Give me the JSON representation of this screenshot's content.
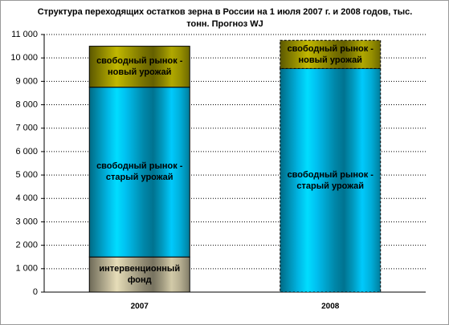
{
  "chart_data": {
    "type": "stacked_bar",
    "title": "Структура переходящих остатков зерна в России на 1 июля 2007 г. и 2008 годов, тыс. тонн. Прогноз WJ",
    "categories": [
      "2007",
      "2008"
    ],
    "series": [
      {
        "name": "интервенционный фонд",
        "color": "#c8c0a0",
        "values": [
          1500,
          null
        ]
      },
      {
        "name": "свободный рынок - старый урожай",
        "color": "#00c0f0",
        "values": [
          7250,
          9550
        ]
      },
      {
        "name": "свободный рынок - новый урожай",
        "color": "#a8a000",
        "values": [
          1750,
          1200
        ]
      }
    ],
    "ylim": [
      0,
      11000
    ],
    "yticks": [
      0,
      {
        "value": 1000,
        "label": "1 000"
      },
      {
        "value": 2000,
        "label": "2 000"
      },
      {
        "value": 3000,
        "label": "3 000"
      },
      {
        "value": 4000,
        "label": "4 000"
      },
      {
        "value": 5000,
        "label": "5 000"
      },
      {
        "value": 6000,
        "label": "6 000"
      },
      {
        "value": 7000,
        "label": "7 000"
      },
      {
        "value": 8000,
        "label": "8 000"
      },
      {
        "value": 9000,
        "label": "9 000"
      },
      {
        "value": 10000,
        "label": "10 000"
      },
      {
        "value": 11000,
        "label": "11 000"
      }
    ],
    "grid": true
  }
}
